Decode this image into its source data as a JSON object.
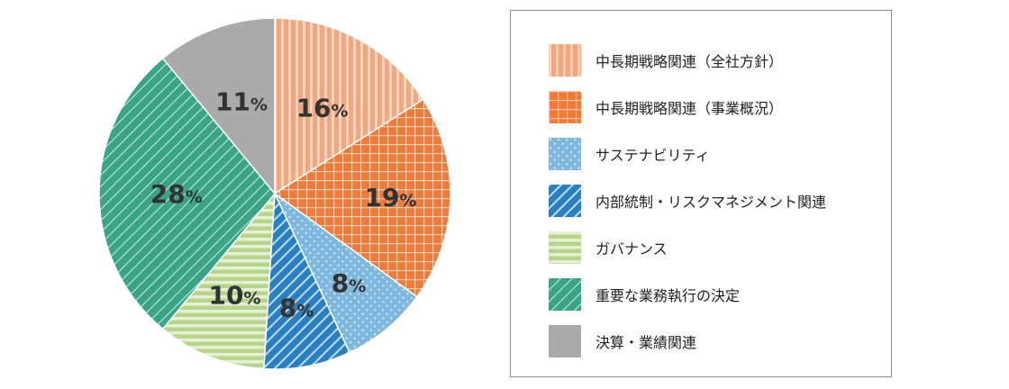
{
  "chart_data": {
    "type": "pie",
    "slices": [
      {
        "label": "中長期戦略関連（全社方針）",
        "value": 16,
        "display": "16",
        "pattern": "vstripe",
        "color": "#f4a67c",
        "color2": "#fbd2ba"
      },
      {
        "label": "中長期戦略関連（事業概況）",
        "value": 19,
        "display": "19",
        "pattern": "grid",
        "color": "#ef7a3a",
        "color2": "#f9c9a8"
      },
      {
        "label": "サステナビリティ",
        "value": 8,
        "display": "8",
        "pattern": "dots",
        "color": "#7fb7df",
        "color2": "#d9ecf8"
      },
      {
        "label": "内部統制・リスクマネジメント関連",
        "value": 8,
        "display": "8",
        "pattern": "diag-bold",
        "color": "#2a7fc0",
        "color2": "#bfdcf1"
      },
      {
        "label": "ガバナンス",
        "value": 10,
        "display": "10",
        "pattern": "hstripe",
        "color": "#b6d48c",
        "color2": "#e4f0d2"
      },
      {
        "label": "重要な業務執行の決定",
        "value": 28,
        "display": "28",
        "pattern": "diag-thin",
        "color": "#3aa486",
        "color2": "#c6e6dc"
      },
      {
        "label": "決算・業績関連",
        "value": 11,
        "display": "11",
        "pattern": "solid",
        "color": "#aaaaaa",
        "color2": "#aaaaaa"
      }
    ],
    "unit": "%",
    "start_angle_deg": 0,
    "direction": "clockwise",
    "legend_position": "right"
  }
}
